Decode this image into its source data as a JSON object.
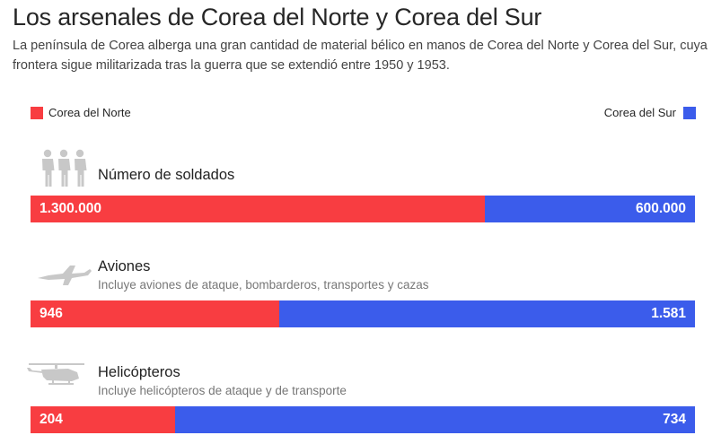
{
  "header": {
    "title": "Los arsenales de Corea del Norte y Corea del Sur",
    "subtitle": "La península de Corea alberga una gran cantidad de material bélico en manos de Corea del Norte y Corea del Sur, cuya frontera sigue militarizada tras la guerra que se extendió entre 1950 y 1953."
  },
  "legend": {
    "north": "Corea del Norte",
    "south": "Corea del Sur"
  },
  "colors": {
    "north": "#f83d41",
    "south": "#3b5ceb",
    "icon": "#c8c8c8"
  },
  "chart_data": {
    "type": "bar",
    "orientation": "horizontal",
    "stacked": "proportional",
    "categories": [
      "Número de soldados",
      "Aviones",
      "Helicópteros"
    ],
    "subtitles": [
      "",
      "Incluye aviones de ataque, bombarderos, transportes y cazas",
      "Incluye helicópteros de ataque y de transporte"
    ],
    "icons": [
      "soldiers-icon",
      "jet-icon",
      "helicopter-icon"
    ],
    "series": [
      {
        "name": "Corea del Norte",
        "values": [
          1300000,
          946,
          204
        ],
        "labels": [
          "1.300.000",
          "946",
          "204"
        ]
      },
      {
        "name": "Corea del Sur",
        "values": [
          600000,
          1581,
          734
        ],
        "labels": [
          "600.000",
          "1.581",
          "734"
        ]
      }
    ],
    "legend_position": "top"
  }
}
